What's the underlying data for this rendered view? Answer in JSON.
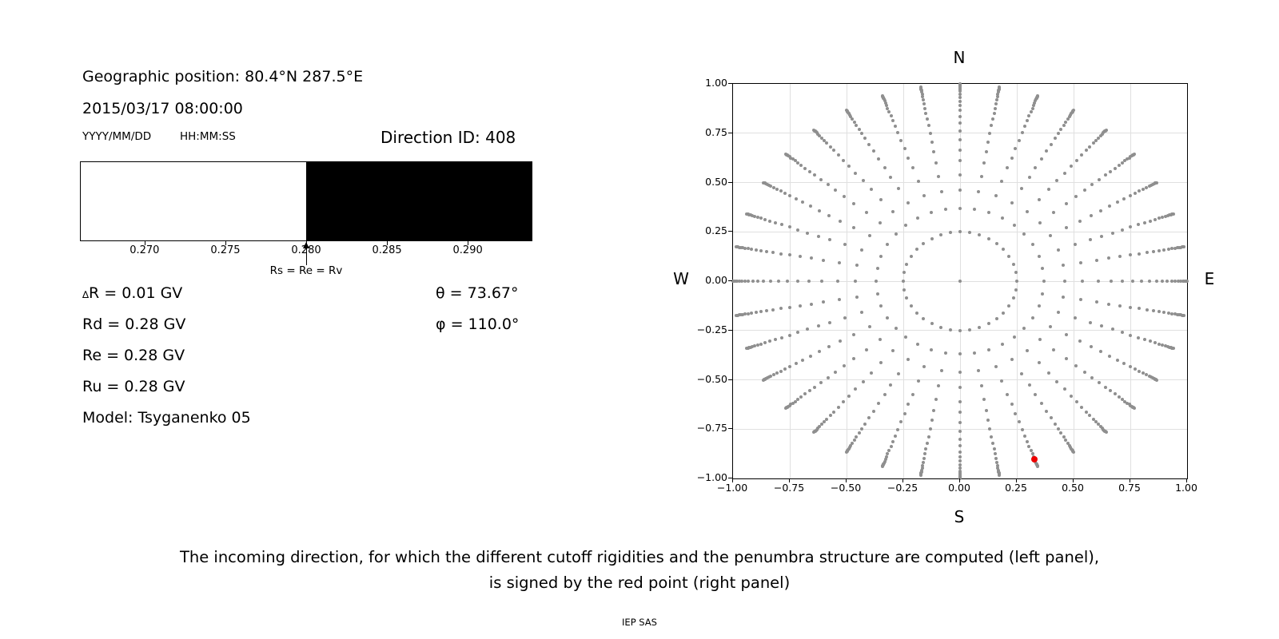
{
  "colors": {
    "background": "#ffffff",
    "text": "#000000",
    "gray_dot": "#8f8f8f",
    "red_dot": "#ee0000",
    "grid": "#e0e0e0",
    "axis": "#000000",
    "penumbra_allowed": "#ffffff",
    "penumbra_forbidden": "#000000"
  },
  "left_panel": {
    "geo_position": "Geographic position: 80.4°N 287.5°E",
    "datetime": "2015/03/17 08:00:00",
    "date_format_label": "YYYY/MM/DD",
    "time_format_label": "HH:MM:SS",
    "direction_id": "Direction ID: 408",
    "arrow_label": "Rs = Re = Rv",
    "delta_symbol": "∆",
    "delta_line_rest": "R = 0.01 GV",
    "info_lines": [
      "Rd = 0.28 GV",
      "Re = 0.28 GV",
      "Ru = 0.28 GV",
      "Model: Tsyganenko 05"
    ],
    "theta_label": "θ = 73.67°",
    "phi_label": "φ = 110.0°"
  },
  "caption": {
    "line1": "The incoming direction, for which the different cutoff rigidities and the penumbra structure are computed (left panel),",
    "line2": "is signed by the red point (right panel)",
    "credit": "IEP SAS"
  },
  "chart_data": [
    {
      "type": "bar",
      "name": "penumbra-structure",
      "xlim": [
        0.266,
        0.294
      ],
      "xticks": [
        0.27,
        0.275,
        0.28,
        0.285,
        0.29
      ],
      "xtick_labels": [
        "0.270",
        "0.275",
        "0.280",
        "0.285",
        "0.290"
      ],
      "segments": [
        {
          "from": 0.266,
          "to": 0.28,
          "color": "#ffffff",
          "meaning": "allowed rigidities"
        },
        {
          "from": 0.28,
          "to": 0.294,
          "color": "#000000",
          "meaning": "forbidden rigidities"
        }
      ],
      "annotation": {
        "x": 0.28,
        "label": "Rs = Re = Rv"
      },
      "values": {
        "delta_R_GV": 0.01,
        "Rd_GV": 0.28,
        "Re_GV": 0.28,
        "Ru_GV": 0.28
      }
    },
    {
      "type": "scatter",
      "name": "incoming-direction-map",
      "xlim": [
        -1.0,
        1.0
      ],
      "ylim": [
        -1.0,
        1.0
      ],
      "xticks": [
        -1.0,
        -0.75,
        -0.5,
        -0.25,
        0.0,
        0.25,
        0.5,
        0.75,
        1.0
      ],
      "xtick_labels": [
        "−1.00",
        "−0.75",
        "−0.50",
        "−0.25",
        "0.00",
        "0.25",
        "0.50",
        "0.75",
        "1.00"
      ],
      "ytick_labels_top_to_bottom": [
        "1.00",
        "0.75",
        "0.50",
        "0.25",
        "0.00",
        "−0.25",
        "−0.50",
        "−0.75",
        "−1.00"
      ],
      "grid": true,
      "grid_step": 0.25,
      "compass": {
        "top": "N",
        "bottom": "S",
        "left": "W",
        "right": "E"
      },
      "azimuth_count": 36,
      "azimuth_step_deg": 10,
      "spoke_radii": [
        0.25,
        0.37,
        0.46,
        0.54,
        0.61,
        0.665,
        0.715,
        0.76,
        0.8,
        0.835,
        0.865,
        0.89,
        0.9125,
        0.932,
        0.9485,
        0.962,
        0.9725,
        0.981,
        0.9875,
        0.9925,
        0.996,
        1.0
      ],
      "center_dot": true,
      "red_point": {
        "plot_azimuth_deg": 160,
        "r": 0.9597,
        "x": 0.328,
        "y": -0.902,
        "theta_deg": 73.67,
        "phi_deg": 110.0
      }
    }
  ]
}
